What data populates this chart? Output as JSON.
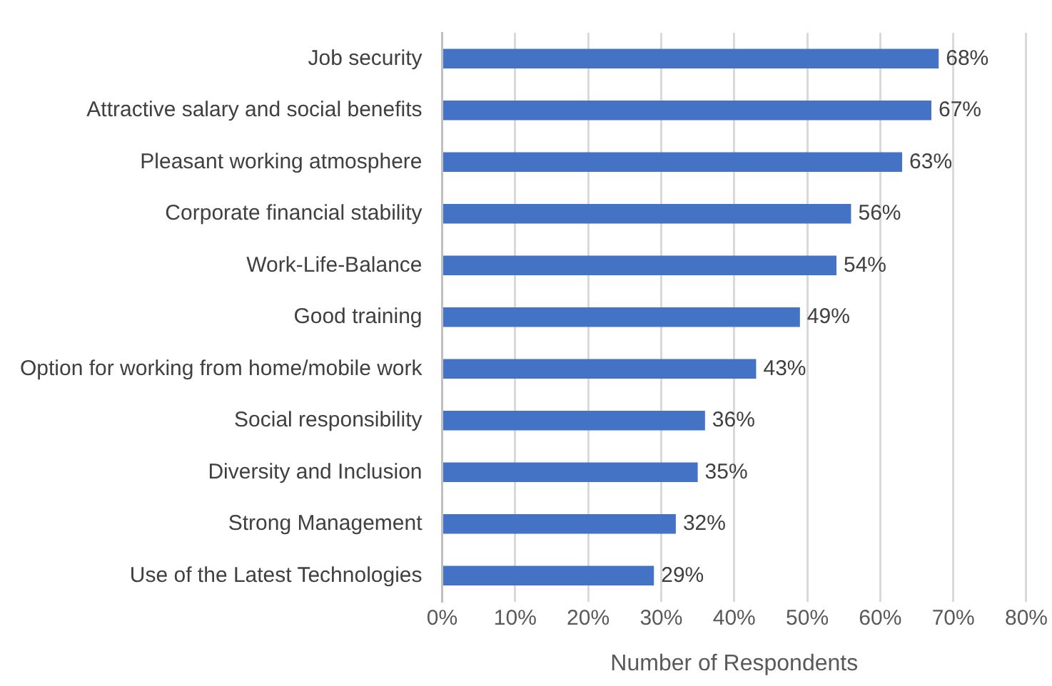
{
  "chart_data": {
    "type": "bar",
    "orientation": "horizontal",
    "xlabel": "Number of Respondents",
    "categories": [
      "Job security",
      "Attractive salary and social benefits",
      "Pleasant working atmosphere",
      "Corporate financial stability",
      "Work-Life-Balance",
      "Good training",
      "Option for working from home/mobile work",
      "Social responsibility",
      "Diversity and Inclusion",
      "Strong Management",
      "Use of the Latest Technologies"
    ],
    "values": [
      68,
      67,
      63,
      56,
      54,
      49,
      43,
      36,
      35,
      32,
      29
    ],
    "value_labels": [
      "68%",
      "67%",
      "63%",
      "56%",
      "54%",
      "49%",
      "43%",
      "36%",
      "35%",
      "32%",
      "29%"
    ],
    "color": "#4472c4",
    "xlim": [
      0,
      80
    ],
    "xticks": [
      {
        "value": 0,
        "label": "0%"
      },
      {
        "value": 10,
        "label": "10%"
      },
      {
        "value": 20,
        "label": "20%"
      },
      {
        "value": 30,
        "label": "30%"
      },
      {
        "value": 40,
        "label": "40%"
      },
      {
        "value": 50,
        "label": "50%"
      },
      {
        "value": 60,
        "label": "60%"
      },
      {
        "value": 70,
        "label": "70%"
      },
      {
        "value": 80,
        "label": "80%"
      }
    ],
    "grid": "x",
    "legend": false
  }
}
